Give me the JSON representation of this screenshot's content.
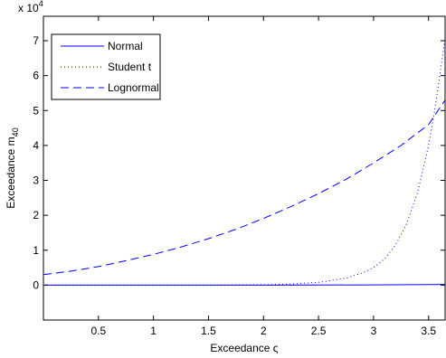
{
  "chart_data": {
    "type": "line",
    "xlabel_text": "Exceedance ς",
    "ylabel_main": "Exceedance m",
    "ylabel_sub": "40",
    "exponent_prefix": "x 10",
    "exponent_power": "4",
    "xlim": [
      0,
      3.65
    ],
    "ylim": [
      -1,
      7.7
    ],
    "y_scale": 10000,
    "xticks": [
      0.5,
      1,
      1.5,
      2,
      2.5,
      3,
      3.5
    ],
    "xtick_labels": [
      "0.5",
      "1",
      "1.5",
      "2",
      "2.5",
      "3",
      "3.5"
    ],
    "yticks": [
      0,
      1,
      2,
      3,
      4,
      5,
      6,
      7
    ],
    "ytick_labels": [
      "0",
      "1",
      "2",
      "3",
      "4",
      "5",
      "6",
      "7"
    ],
    "grid": false,
    "legend_position": "top-left",
    "series": [
      {
        "name": "Normal",
        "style": "solid",
        "color": "#0000ff",
        "x": [
          0,
          0.5,
          1,
          1.5,
          2,
          2.5,
          3,
          3.5,
          3.65
        ],
        "y": [
          0,
          0,
          0,
          0,
          0.001,
          0.003,
          0.007,
          0.015,
          0.02
        ]
      },
      {
        "name": "Student t",
        "style": "dotted",
        "color": "#0000ff",
        "x": [
          0,
          0.5,
          1,
          1.5,
          2,
          2.25,
          2.5,
          2.75,
          2.9,
          3.0,
          3.1,
          3.2,
          3.3,
          3.4,
          3.5,
          3.55,
          3.6,
          3.65
        ],
        "y": [
          0,
          0,
          0,
          0,
          0.01,
          0.03,
          0.08,
          0.2,
          0.35,
          0.5,
          0.75,
          1.15,
          1.75,
          2.65,
          4.0,
          4.9,
          5.95,
          7.1
        ]
      },
      {
        "name": "Lognormal",
        "style": "dashed",
        "color": "#0000ff",
        "x": [
          0,
          0.25,
          0.5,
          0.75,
          1,
          1.25,
          1.5,
          1.75,
          2,
          2.25,
          2.5,
          2.75,
          3,
          3.25,
          3.5,
          3.65
        ],
        "y": [
          0.3,
          0.4,
          0.53,
          0.7,
          0.88,
          1.09,
          1.33,
          1.6,
          1.91,
          2.25,
          2.62,
          3.03,
          3.5,
          4.0,
          4.6,
          5.3
        ]
      }
    ]
  }
}
